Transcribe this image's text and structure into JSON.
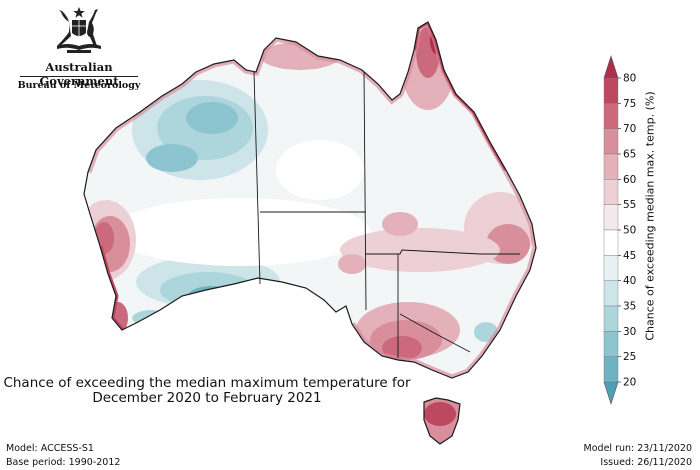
{
  "logo": {
    "emblem_icon": "commonwealth-coat-of-arms-icon",
    "government_label": "Australian Government",
    "agency_label": "Bureau of Meteorology"
  },
  "title": {
    "line1": "Chance of exceeding the median maximum temperature for",
    "line2": "December 2020 to February 2021"
  },
  "footer": {
    "model": "Model: ACCESS-S1",
    "base_period": "Base period: 1990-2012",
    "model_run": "Model run: 23/11/2020",
    "issued": "Issued: 26/11/2020"
  },
  "colorbar": {
    "label": "Chance of exceeding median max. temp. (%)",
    "ticks": [
      "20",
      "25",
      "30",
      "35",
      "40",
      "45",
      "50",
      "55",
      "60",
      "65",
      "70",
      "75",
      "80"
    ],
    "colors": [
      "#4fa0b4",
      "#6db3c2",
      "#8cc4cf",
      "#add6dc",
      "#cde4e8",
      "#e7f0f2",
      "#ffffff",
      "#f1e9eb",
      "#ecd0d5",
      "#e4b1ba",
      "#d98e9c",
      "#cc6a7d",
      "#bd4860",
      "#b02e4a"
    ]
  },
  "colors": {
    "border": "#1a1a1a",
    "warm_high": "#bd4860",
    "cool_low": "#6db3c2"
  }
}
